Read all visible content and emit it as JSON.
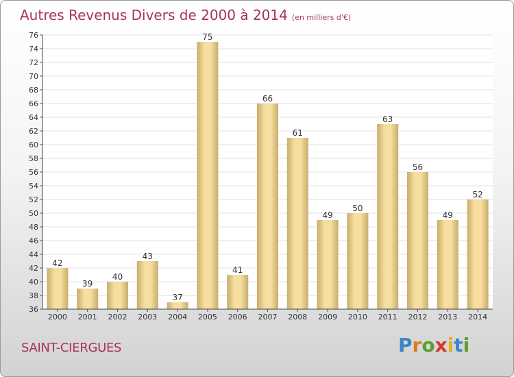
{
  "header": {
    "title": "Autres Revenus Divers de 2000 à 2014",
    "unit": "(en milliers d'€)"
  },
  "footer": {
    "commune": "SAINT-CIERGUES",
    "brand": "Proxiti"
  },
  "colors": {
    "title": "#a8325c",
    "bar_light": "#f5dea0",
    "bar_dark": "#c9ad6b",
    "grid": "#e2e2e2"
  },
  "chart_data": {
    "type": "bar",
    "categories": [
      "2000",
      "2001",
      "2002",
      "2003",
      "2004",
      "2005",
      "2006",
      "2007",
      "2008",
      "2009",
      "2010",
      "2011",
      "2012",
      "2013",
      "2014"
    ],
    "values": [
      42,
      39,
      40,
      43,
      37,
      75,
      41,
      66,
      61,
      49,
      50,
      63,
      56,
      49,
      52
    ],
    "title": "Autres Revenus Divers de 2000 à 2014",
    "subtitle": "(en milliers d'€)",
    "xlabel": "",
    "ylabel": "",
    "ylim": [
      36,
      76
    ],
    "yticks": [
      36,
      38,
      40,
      42,
      44,
      46,
      48,
      50,
      52,
      54,
      56,
      58,
      60,
      62,
      64,
      66,
      68,
      70,
      72,
      74,
      76
    ],
    "grid": true,
    "legend": "none"
  }
}
